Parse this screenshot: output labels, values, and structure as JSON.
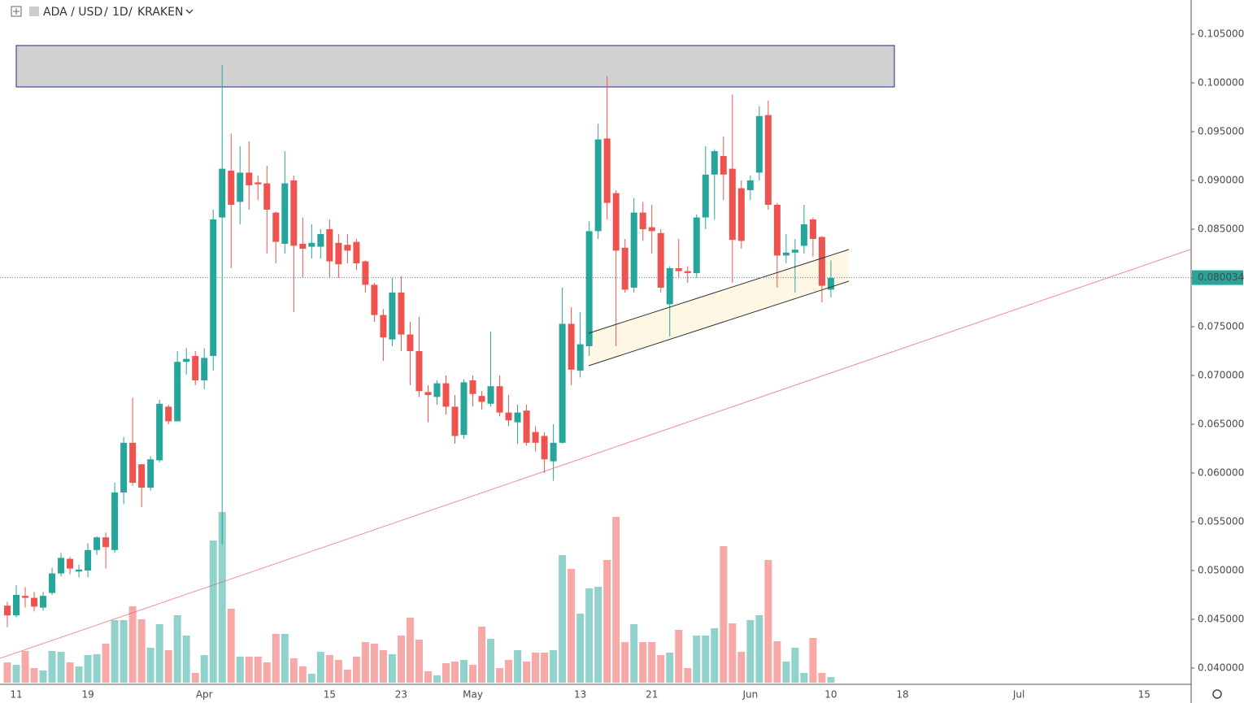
{
  "chart_data": {
    "type": "candlestick",
    "title": "ADA / USD",
    "interval": "1D",
    "exchange": "KRAKEN",
    "categories": [
      null,
      "11",
      null,
      null,
      null,
      null,
      null,
      null,
      null,
      "19",
      null,
      null,
      null,
      null,
      null,
      null,
      null,
      null,
      null,
      null,
      null,
      null,
      "Apr",
      null,
      null,
      null,
      null,
      null,
      null,
      null,
      null,
      null,
      null,
      null,
      null,
      null,
      "15",
      null,
      null,
      null,
      null,
      null,
      null,
      null,
      "23",
      null,
      null,
      null,
      null,
      null,
      null,
      null,
      "May",
      null,
      null,
      null,
      null,
      null,
      null,
      null,
      null,
      null,
      null,
      null,
      "13",
      null,
      null,
      null,
      null,
      null,
      null,
      null,
      "21",
      null,
      null,
      null,
      null,
      null,
      null,
      null,
      null,
      null,
      null,
      "Jun",
      null,
      null,
      null,
      null,
      null,
      null,
      null,
      null,
      "10",
      null,
      null,
      null,
      null,
      null,
      null,
      null,
      "18",
      null,
      null,
      null,
      null,
      null,
      null,
      null,
      null,
      null,
      null,
      null,
      null,
      "Jul",
      null,
      null,
      null,
      null,
      null,
      null,
      null,
      null,
      null,
      null,
      null,
      null,
      null,
      "15",
      null,
      null,
      null,
      null,
      null
    ],
    "open": [
      0.0464,
      0.0454,
      0.0474,
      0.0472,
      0.0462,
      0.0477,
      0.0497,
      0.0512,
      0.0499,
      0.05,
      0.0521,
      0.0534,
      0.0521,
      0.058,
      0.0631,
      0.0609,
      0.0585,
      0.0613,
      0.0668,
      0.0653,
      0.0714,
      0.072,
      0.0695,
      0.072,
      0.0862,
      0.091,
      0.0878,
      0.0908,
      0.0898,
      0.0897,
      0.0867,
      0.0835,
      0.09,
      0.0835,
      0.0832,
      0.0832,
      0.085,
      0.0836,
      0.0834,
      0.0837,
      0.0817,
      0.0793,
      0.0762,
      0.0737,
      0.0785,
      0.0742,
      0.0725,
      0.0683,
      0.0678,
      0.0692,
      0.0668,
      0.0639,
      0.0695,
      0.0679,
      0.0671,
      0.0689,
      0.0662,
      0.0652,
      0.0664,
      0.0642,
      0.0638,
      0.0612,
      0.0631,
      0.0753,
      0.0705,
      0.073,
      0.0848,
      0.0943,
      0.0887,
      0.0831,
      0.079,
      0.0867,
      0.0852,
      0.0846,
      0.0773,
      0.081,
      0.0807,
      0.0805,
      0.0862,
      0.0906,
      0.0925,
      0.0912,
      0.0892,
      0.089,
      0.0908,
      0.0967,
      0.0875,
      0.0823,
      0.0826,
      0.0833,
      0.086,
      0.0842,
      0.0788,
      null,
      null,
      null,
      null,
      null,
      null,
      null,
      null,
      null,
      null,
      null,
      null,
      null,
      null,
      null,
      null,
      null,
      null,
      null,
      null,
      null,
      null,
      null,
      null,
      null,
      null,
      null,
      null,
      null,
      null,
      null,
      null,
      null,
      null,
      null,
      null,
      null,
      null,
      null,
      null
    ],
    "high": [
      0.0468,
      0.0485,
      0.0483,
      0.0478,
      0.0478,
      0.0503,
      0.0518,
      0.0514,
      0.0506,
      0.0528,
      0.0535,
      0.0539,
      0.059,
      0.0637,
      0.0677,
      0.0609,
      0.0617,
      0.0675,
      0.067,
      0.0725,
      0.0728,
      0.0725,
      0.0728,
      0.087,
      0.1018,
      0.0948,
      0.0935,
      0.094,
      0.0905,
      0.0915,
      0.0868,
      0.093,
      0.0905,
      0.0862,
      0.0855,
      0.085,
      0.086,
      0.0845,
      0.0845,
      0.084,
      0.0818,
      0.0795,
      0.0768,
      0.08,
      0.0802,
      0.0755,
      0.076,
      0.069,
      0.0695,
      0.07,
      0.068,
      0.0696,
      0.07,
      0.0684,
      0.0745,
      0.07,
      0.068,
      0.067,
      0.067,
      0.0648,
      0.0642,
      0.065,
      0.079,
      0.077,
      0.0765,
      0.0858,
      0.0958,
      0.1007,
      0.089,
      0.084,
      0.0882,
      0.0878,
      0.0875,
      0.085,
      0.0812,
      0.084,
      0.0812,
      0.0865,
      0.0935,
      0.0932,
      0.0945,
      0.0988,
      0.09,
      0.0905,
      0.0976,
      0.0982,
      0.0877,
      0.0845,
      0.084,
      0.0875,
      0.0862,
      0.0843,
      0.0818,
      null,
      null,
      null,
      null,
      null,
      null,
      null,
      null,
      null,
      null,
      null,
      null,
      null,
      null,
      null,
      null,
      null,
      null,
      null,
      null,
      null,
      null,
      null,
      null,
      null,
      null,
      null,
      null,
      null,
      null,
      null,
      null,
      null,
      null,
      null,
      null,
      null,
      null,
      null,
      null
    ],
    "low": [
      0.0442,
      0.0452,
      0.0462,
      0.0458,
      0.0459,
      0.0475,
      0.0494,
      0.0496,
      0.0493,
      0.0493,
      0.0516,
      0.0502,
      0.0518,
      0.0568,
      0.0587,
      0.0565,
      0.0582,
      0.0611,
      0.065,
      0.0653,
      0.0701,
      0.069,
      0.0686,
      0.0705,
      0.0527,
      0.081,
      0.0855,
      0.087,
      0.088,
      0.0825,
      0.0815,
      0.0825,
      0.0765,
      0.08,
      0.082,
      0.082,
      0.08,
      0.08,
      0.0815,
      0.0808,
      0.0785,
      0.0755,
      0.0715,
      0.073,
      0.0725,
      0.069,
      0.0678,
      0.0652,
      0.067,
      0.066,
      0.063,
      0.0635,
      0.0668,
      0.0665,
      0.0668,
      0.0658,
      0.0648,
      0.063,
      0.0628,
      0.0622,
      0.06,
      0.0592,
      0.063,
      0.069,
      0.0698,
      0.072,
      0.084,
      0.086,
      0.073,
      0.0785,
      0.0785,
      0.0838,
      0.0825,
      0.0785,
      0.074,
      0.08,
      0.0795,
      0.08,
      0.085,
      0.086,
      0.088,
      0.0795,
      0.083,
      0.088,
      0.09,
      0.087,
      0.079,
      0.0815,
      0.0785,
      0.0825,
      0.0822,
      0.0775,
      0.078,
      null,
      null,
      null,
      null,
      null,
      null,
      null,
      null,
      null,
      null,
      null,
      null,
      null,
      null,
      null,
      null,
      null,
      null,
      null,
      null,
      null,
      null,
      null,
      null,
      null,
      null,
      null,
      null,
      null,
      null,
      null,
      null,
      null,
      null,
      null,
      null,
      null,
      null,
      null,
      null
    ],
    "close": [
      0.0454,
      0.0475,
      0.0472,
      0.0463,
      0.0474,
      0.0497,
      0.0513,
      0.0502,
      0.0501,
      0.0521,
      0.0534,
      0.0524,
      0.058,
      0.0631,
      0.059,
      0.0585,
      0.0614,
      0.0671,
      0.0653,
      0.0714,
      0.0717,
      0.0695,
      0.0718,
      0.086,
      0.0912,
      0.0875,
      0.0908,
      0.0895,
      0.0896,
      0.087,
      0.0837,
      0.0897,
      0.0833,
      0.083,
      0.0836,
      0.0845,
      0.0817,
      0.0814,
      0.0828,
      0.0815,
      0.0793,
      0.0762,
      0.0739,
      0.0785,
      0.0742,
      0.0725,
      0.0684,
      0.068,
      0.0692,
      0.0668,
      0.0638,
      0.0693,
      0.0681,
      0.0673,
      0.0689,
      0.0662,
      0.0654,
      0.0662,
      0.0631,
      0.0631,
      0.0614,
      0.0631,
      0.0753,
      0.0706,
      0.0732,
      0.0848,
      0.0942,
      0.0877,
      0.0828,
      0.0788,
      0.0867,
      0.085,
      0.0848,
      0.079,
      0.081,
      0.0807,
      0.0805,
      0.0862,
      0.0906,
      0.093,
      0.0906,
      0.0839,
      0.0838,
      0.09,
      0.0966,
      0.0875,
      0.0823,
      0.0826,
      0.0829,
      0.0855,
      0.084,
      0.0792,
      0.08,
      null,
      null,
      null,
      null,
      null,
      null,
      null,
      null,
      null,
      null,
      null,
      null,
      null,
      null,
      null,
      null,
      null,
      null,
      null,
      null,
      null,
      null,
      null,
      null,
      null,
      null,
      null,
      null,
      null,
      null,
      null,
      null,
      null,
      null,
      null,
      null,
      null,
      null,
      null,
      null
    ],
    "volume": [
      25,
      22,
      39,
      18,
      15,
      39,
      38,
      25,
      20,
      34,
      35,
      48,
      77,
      77,
      94,
      78,
      43,
      72,
      40,
      83,
      58,
      12,
      34,
      175,
      210,
      91,
      32,
      32,
      32,
      25,
      60,
      60,
      30,
      20,
      11,
      38,
      34,
      28,
      16,
      32,
      50,
      48,
      40,
      35,
      58,
      80,
      53,
      14,
      9,
      24,
      26,
      28,
      22,
      69,
      54,
      18,
      28,
      40,
      26,
      37,
      37,
      40,
      157,
      140,
      85,
      116,
      118,
      151,
      204,
      50,
      72,
      50,
      50,
      34,
      37,
      65,
      18,
      58,
      58,
      67,
      168,
      73,
      38,
      77,
      83,
      151,
      51,
      26,
      43,
      12,
      55,
      12,
      7,
      null,
      null,
      null,
      null,
      null,
      null,
      null,
      null,
      null,
      null,
      null,
      null,
      null,
      null,
      null,
      null,
      null,
      null,
      null,
      null,
      null,
      null,
      null,
      null,
      null,
      null,
      null,
      null,
      null,
      null,
      null,
      null,
      null,
      null,
      null,
      null,
      null,
      null,
      null,
      null
    ],
    "up_color": "#26a69a",
    "down_color": "#ef5350",
    "ylim": [
      0.0385,
      0.1085
    ],
    "yticks": [
      {
        "value": 0.04,
        "label": "0.040000"
      },
      {
        "value": 0.045,
        "label": "0.045000"
      },
      {
        "value": 0.05,
        "label": "0.050000"
      },
      {
        "value": 0.055,
        "label": "0.055000"
      },
      {
        "value": 0.06,
        "label": "0.060000"
      },
      {
        "value": 0.065,
        "label": "0.065000"
      },
      {
        "value": 0.07,
        "label": "0.070000"
      },
      {
        "value": 0.075,
        "label": "0.075000"
      },
      {
        "value": 0.08,
        "label": "0.080000"
      },
      {
        "value": 0.085,
        "label": "0.085000"
      },
      {
        "value": 0.09,
        "label": "0.090000"
      },
      {
        "value": 0.095,
        "label": "0.095000"
      },
      {
        "value": 0.1,
        "label": "0.100000"
      },
      {
        "value": 0.105,
        "label": "0.105000"
      }
    ],
    "last_price": 0.080034,
    "grid": false
  }
}
